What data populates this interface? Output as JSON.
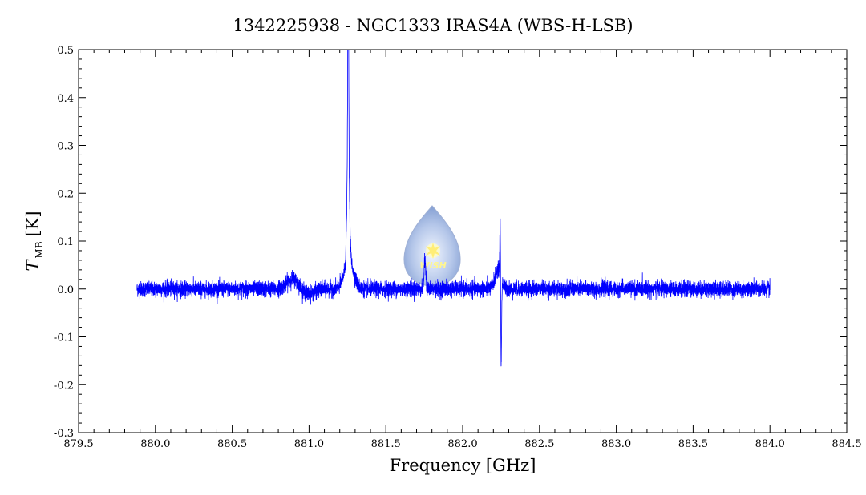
{
  "chart_data": {
    "type": "line",
    "title": "1342225938 - NGC1333 IRAS4A (WBS-H-LSB)",
    "xlabel": "Frequency [GHz]",
    "ylabel": {
      "symbol": "T",
      "subscript": "MB",
      "unit": "[K]"
    },
    "xlim": [
      879.5,
      884.5
    ],
    "ylim": [
      -0.3,
      0.5
    ],
    "xticks": [
      "879.5",
      "880.0",
      "880.5",
      "881.0",
      "881.5",
      "882.0",
      "882.5",
      "883.0",
      "883.5",
      "884.0",
      "884.5"
    ],
    "yticks": [
      "-0.3",
      "-0.2",
      "-0.1",
      "0.0",
      "0.1",
      "0.2",
      "0.3",
      "0.4",
      "0.5"
    ],
    "grid": false,
    "line_color": "#0000ff",
    "series": [
      {
        "x_range": [
          879.88,
          884.0
        ],
        "noise_rms_K": 0.008,
        "features": [
          {
            "x": 880.9,
            "peak": 0.025,
            "width_GHz": 0.04
          },
          {
            "x": 880.98,
            "peak": -0.012,
            "width_GHz": 0.05
          },
          {
            "x": 881.255,
            "peak": 0.4,
            "width_GHz": 0.003
          },
          {
            "x": 881.255,
            "peak": 0.23,
            "width_GHz": 0.008
          },
          {
            "x": 881.26,
            "peak": 0.06,
            "width_GHz": 0.03
          },
          {
            "x": 881.755,
            "peak": 0.06,
            "width_GHz": 0.006
          },
          {
            "x": 882.23,
            "peak": 0.04,
            "width_GHz": 0.02
          },
          {
            "x": 882.245,
            "peak": 0.145,
            "width_GHz": 0.003
          },
          {
            "x": 882.25,
            "peak": -0.21,
            "width_GHz": 0.003
          }
        ]
      }
    ]
  },
  "logo": {
    "text": "WISH"
  }
}
